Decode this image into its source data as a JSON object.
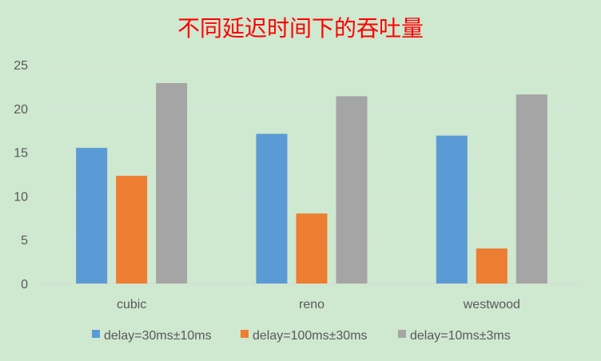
{
  "chart_data": {
    "type": "bar",
    "title": "不同延迟时间下的吞吐量",
    "categories": [
      "cubic",
      "reno",
      "westwood"
    ],
    "series": [
      {
        "name": "delay=30ms±10ms",
        "color": "#5b9bd5",
        "values": [
          15.5,
          17.1,
          16.9
        ]
      },
      {
        "name": "delay=100ms±30ms",
        "color": "#ed7d31",
        "values": [
          12.3,
          8.0,
          4.0
        ]
      },
      {
        "name": "delay=10ms±3ms",
        "color": "#a5a5a5",
        "values": [
          22.9,
          21.4,
          21.6
        ]
      }
    ],
    "yticks": [
      "0",
      "5",
      "10",
      "15",
      "20",
      "25"
    ],
    "ylim": [
      0,
      25
    ],
    "grid": true,
    "legend_position": "bottom"
  }
}
